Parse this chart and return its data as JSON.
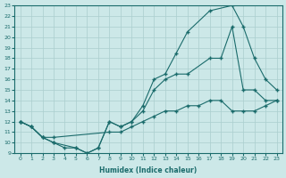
{
  "xlabel": "Humidex (Indice chaleur)",
  "bg_color": "#cce8e8",
  "grid_color": "#aacece",
  "line_color": "#1a6b6b",
  "xlim": [
    -0.5,
    23.5
  ],
  "ylim": [
    9,
    23
  ],
  "xticks": [
    0,
    1,
    2,
    3,
    4,
    5,
    6,
    7,
    8,
    9,
    10,
    11,
    12,
    13,
    14,
    15,
    16,
    17,
    18,
    19,
    20,
    21,
    22,
    23
  ],
  "yticks": [
    9,
    10,
    11,
    12,
    13,
    14,
    15,
    16,
    17,
    18,
    19,
    20,
    21,
    22,
    23
  ],
  "line1_x": [
    0,
    1,
    2,
    3,
    4,
    5,
    6,
    7,
    8,
    9,
    10,
    11,
    12,
    13,
    14,
    15,
    17,
    18,
    19,
    20,
    21,
    22,
    23
  ],
  "line1_y": [
    12,
    11.5,
    10.5,
    10,
    9.5,
    9.5,
    9,
    9.5,
    12,
    11.5,
    12,
    13,
    15,
    16,
    16.5,
    16.5,
    18,
    18,
    21,
    15,
    15,
    14,
    14
  ],
  "line2_x": [
    0,
    1,
    2,
    3,
    5,
    6,
    7,
    8,
    9,
    10,
    11,
    12,
    13,
    14,
    15,
    17,
    19,
    20,
    21,
    22,
    23
  ],
  "line2_y": [
    12,
    11.5,
    10.5,
    10,
    9.5,
    9,
    9.5,
    12,
    11.5,
    12,
    13.5,
    16,
    16.5,
    18.5,
    20.5,
    22.5,
    23,
    21,
    18,
    16,
    15
  ],
  "line3_x": [
    0,
    1,
    2,
    3,
    8,
    9,
    10,
    11,
    12,
    13,
    14,
    15,
    16,
    17,
    18,
    19,
    20,
    21,
    22,
    23
  ],
  "line3_y": [
    12,
    11.5,
    10.5,
    10.5,
    11,
    11,
    11.5,
    12,
    12.5,
    13,
    13,
    13.5,
    13.5,
    14,
    14,
    13,
    13,
    13,
    13.5,
    14
  ]
}
